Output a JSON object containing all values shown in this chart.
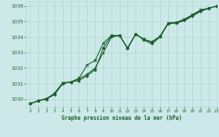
{
  "title": "Graphe pression niveau de la mer (hPa)",
  "background_color": "#cce8e8",
  "grid_color": "#b0d8d0",
  "line_color": "#1a5e2a",
  "xlim": [
    -0.5,
    23
  ],
  "ylim": [
    1029.5,
    1036.3
  ],
  "yticks": [
    1030,
    1031,
    1032,
    1033,
    1034,
    1035,
    1036
  ],
  "xticks": [
    0,
    1,
    2,
    3,
    4,
    5,
    6,
    7,
    8,
    9,
    10,
    11,
    12,
    13,
    14,
    15,
    16,
    17,
    18,
    19,
    20,
    21,
    22,
    23
  ],
  "series1_x": [
    0,
    1,
    2,
    3,
    4,
    5,
    6,
    7,
    8,
    9,
    10,
    11,
    12,
    13,
    14,
    15,
    16,
    17,
    18,
    19,
    20,
    21,
    22,
    23
  ],
  "series1_y": [
    1029.7,
    1029.9,
    1030.0,
    1030.3,
    1031.0,
    1031.1,
    1031.2,
    1031.5,
    1031.9,
    1033.3,
    1034.1,
    1034.1,
    1033.3,
    1034.2,
    1033.85,
    1033.7,
    1034.05,
    1034.9,
    1034.95,
    1035.1,
    1035.4,
    1035.7,
    1035.85,
    1036.0
  ],
  "series2_x": [
    0,
    1,
    2,
    3,
    4,
    5,
    6,
    7,
    8,
    9,
    10,
    11,
    12,
    13,
    14,
    15,
    16,
    17,
    18,
    19,
    20,
    21,
    22,
    23
  ],
  "series2_y": [
    1029.7,
    1029.9,
    1030.05,
    1030.35,
    1031.05,
    1031.1,
    1031.3,
    1031.6,
    1032.0,
    1033.0,
    1034.0,
    1034.1,
    1033.25,
    1034.2,
    1033.8,
    1033.55,
    1034.0,
    1034.85,
    1034.9,
    1035.05,
    1035.35,
    1035.65,
    1035.85,
    1036.0
  ],
  "series3_x": [
    0,
    1,
    2,
    3,
    4,
    5,
    6,
    7,
    8,
    9,
    10,
    11,
    12,
    13,
    14,
    15,
    16,
    17,
    18,
    19,
    20,
    21,
    22,
    23
  ],
  "series3_y": [
    1029.7,
    1029.9,
    1030.0,
    1030.4,
    1031.05,
    1031.1,
    1031.35,
    1032.2,
    1032.5,
    1033.6,
    1034.1,
    1034.1,
    1033.3,
    1034.2,
    1033.85,
    1033.65,
    1034.05,
    1034.9,
    1034.95,
    1035.15,
    1035.45,
    1035.75,
    1035.85,
    1036.0
  ]
}
